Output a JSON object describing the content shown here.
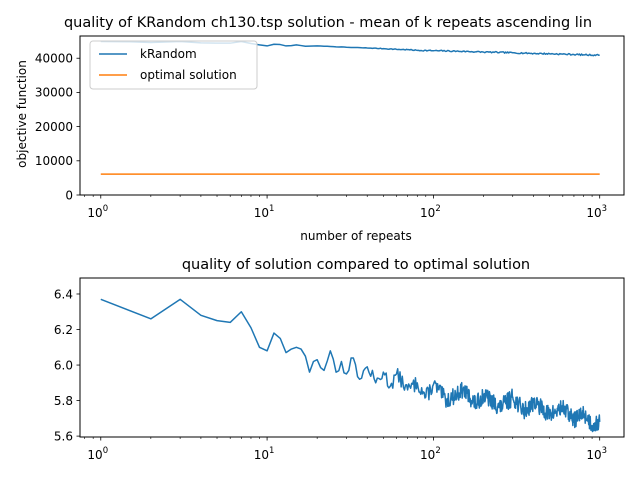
{
  "colors": {
    "krandom": "#1f77b4",
    "optimal": "#ff7f0e",
    "axis": "#000000",
    "background": "#ffffff"
  },
  "chart_data": [
    {
      "type": "line",
      "title": "quality of KRandom ch130.tsp solution - mean of k repeats ascending lin",
      "xlabel": "number of repeats",
      "ylabel": "objective function",
      "xscale": "log",
      "xlim": [
        0.75,
        1400
      ],
      "ylim": [
        0,
        46500
      ],
      "x_ticks": [
        {
          "value": 1,
          "base": "10",
          "exp": "0"
        },
        {
          "value": 10,
          "base": "10",
          "exp": "1"
        },
        {
          "value": 100,
          "base": "10",
          "exp": "2"
        },
        {
          "value": 1000,
          "base": "10",
          "exp": "3"
        }
      ],
      "y_ticks": [
        {
          "value": 0,
          "label": "0"
        },
        {
          "value": 10000,
          "label": "10000"
        },
        {
          "value": 20000,
          "label": "20000"
        },
        {
          "value": 30000,
          "label": "30000"
        },
        {
          "value": 40000,
          "label": "40000"
        }
      ],
      "grid": false,
      "legend": {
        "placement": "top-left",
        "entries": [
          "kRandom",
          "optimal solution"
        ]
      },
      "series": [
        {
          "name": "kRandom",
          "color": "#1f77b4",
          "x": [
            1,
            1.5,
            2,
            3,
            4,
            5,
            6,
            7,
            8,
            9,
            10,
            11,
            12,
            13,
            14,
            15,
            17,
            20,
            25,
            30,
            40,
            50,
            60,
            70,
            80,
            100,
            150,
            200,
            300,
            400,
            500,
            600,
            700,
            800,
            1000
          ],
          "y": [
            44900,
            44800,
            44600,
            44900,
            44500,
            44400,
            44400,
            44900,
            44300,
            43900,
            43600,
            44100,
            44000,
            43600,
            43700,
            43900,
            43500,
            43600,
            43400,
            43200,
            43000,
            42800,
            42600,
            42500,
            42300,
            42200,
            42000,
            41800,
            41600,
            41400,
            41300,
            41200,
            41100,
            41000,
            40900
          ]
        },
        {
          "name": "optimal solution",
          "color": "#ff7f0e",
          "x": [
            1,
            1000
          ],
          "y": [
            6110,
            6110
          ]
        }
      ]
    },
    {
      "type": "line",
      "title": "quality of solution compared to optimal solution",
      "xlabel": "",
      "ylabel": "",
      "xscale": "log",
      "xlim": [
        0.75,
        1400
      ],
      "ylim": [
        5.595,
        6.49
      ],
      "x_ticks": [
        {
          "value": 1,
          "base": "10",
          "exp": "0"
        },
        {
          "value": 10,
          "base": "10",
          "exp": "1"
        },
        {
          "value": 100,
          "base": "10",
          "exp": "2"
        },
        {
          "value": 1000,
          "base": "10",
          "exp": "3"
        }
      ],
      "y_ticks": [
        {
          "value": 5.6,
          "label": "5.6"
        },
        {
          "value": 5.8,
          "label": "5.8"
        },
        {
          "value": 6.0,
          "label": "6.0"
        },
        {
          "value": 6.2,
          "label": "6.2"
        },
        {
          "value": 6.4,
          "label": "6.4"
        }
      ],
      "grid": false,
      "series": [
        {
          "color": "#1f77b4",
          "x": [
            1,
            2,
            3,
            4,
            5,
            6,
            7,
            8,
            9,
            10,
            11,
            12,
            13,
            14,
            15,
            16,
            17,
            18,
            19,
            20,
            22,
            24,
            26,
            28,
            30,
            33,
            36,
            40,
            45,
            50,
            55,
            60,
            70,
            80,
            90,
            100,
            120,
            150,
            180,
            200,
            250,
            300,
            350,
            400,
            500,
            600,
            700,
            800,
            900,
            1000
          ],
          "y": [
            6.37,
            6.26,
            6.37,
            6.28,
            6.25,
            6.24,
            6.3,
            6.21,
            6.1,
            6.08,
            6.18,
            6.15,
            6.07,
            6.09,
            6.1,
            6.09,
            6.05,
            5.96,
            6.02,
            6.03,
            5.97,
            6.08,
            5.96,
            6.02,
            5.95,
            6.04,
            5.92,
            5.99,
            5.9,
            5.96,
            5.88,
            5.95,
            5.86,
            5.9,
            5.82,
            5.89,
            5.8,
            5.86,
            5.78,
            5.83,
            5.76,
            5.82,
            5.74,
            5.79,
            5.72,
            5.76,
            5.69,
            5.73,
            5.66,
            5.68
          ],
          "noise": [
            [
              40,
              0.035
            ],
            [
              100,
              0.045
            ],
            [
              300,
              0.05
            ],
            [
              1000,
              0.045
            ]
          ]
        }
      ]
    }
  ]
}
